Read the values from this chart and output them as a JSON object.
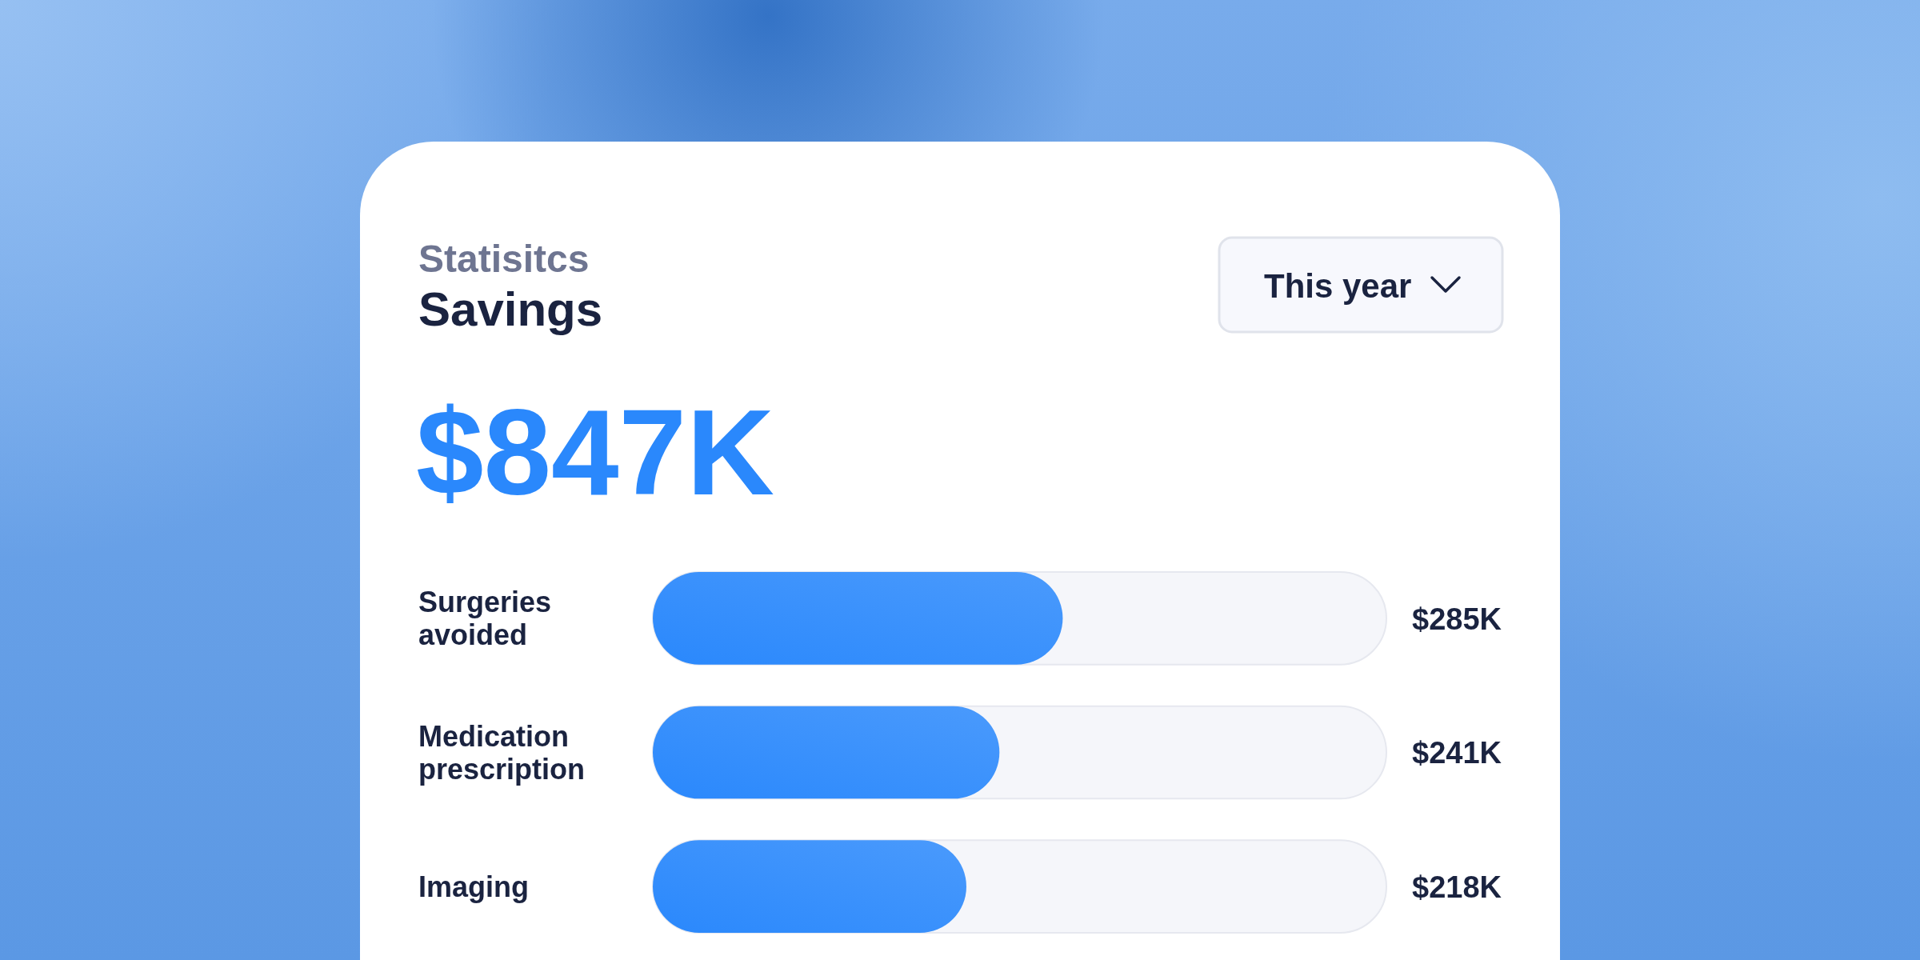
{
  "chart_data": {
    "type": "bar",
    "orientation": "horizontal",
    "title": "Savings",
    "subtitle": "Statisitcs",
    "annotations": [
      "$847K",
      "This year"
    ],
    "categories": [
      "Surgeries avoided",
      "Medication prescription",
      "Imaging"
    ],
    "values": [
      285,
      241,
      218
    ],
    "value_labels": [
      "$285K",
      "$241K",
      "$218K"
    ],
    "color": "#2a88fc",
    "xlim": [
      0,
      510
    ],
    "tick_labels": "y"
  }
}
